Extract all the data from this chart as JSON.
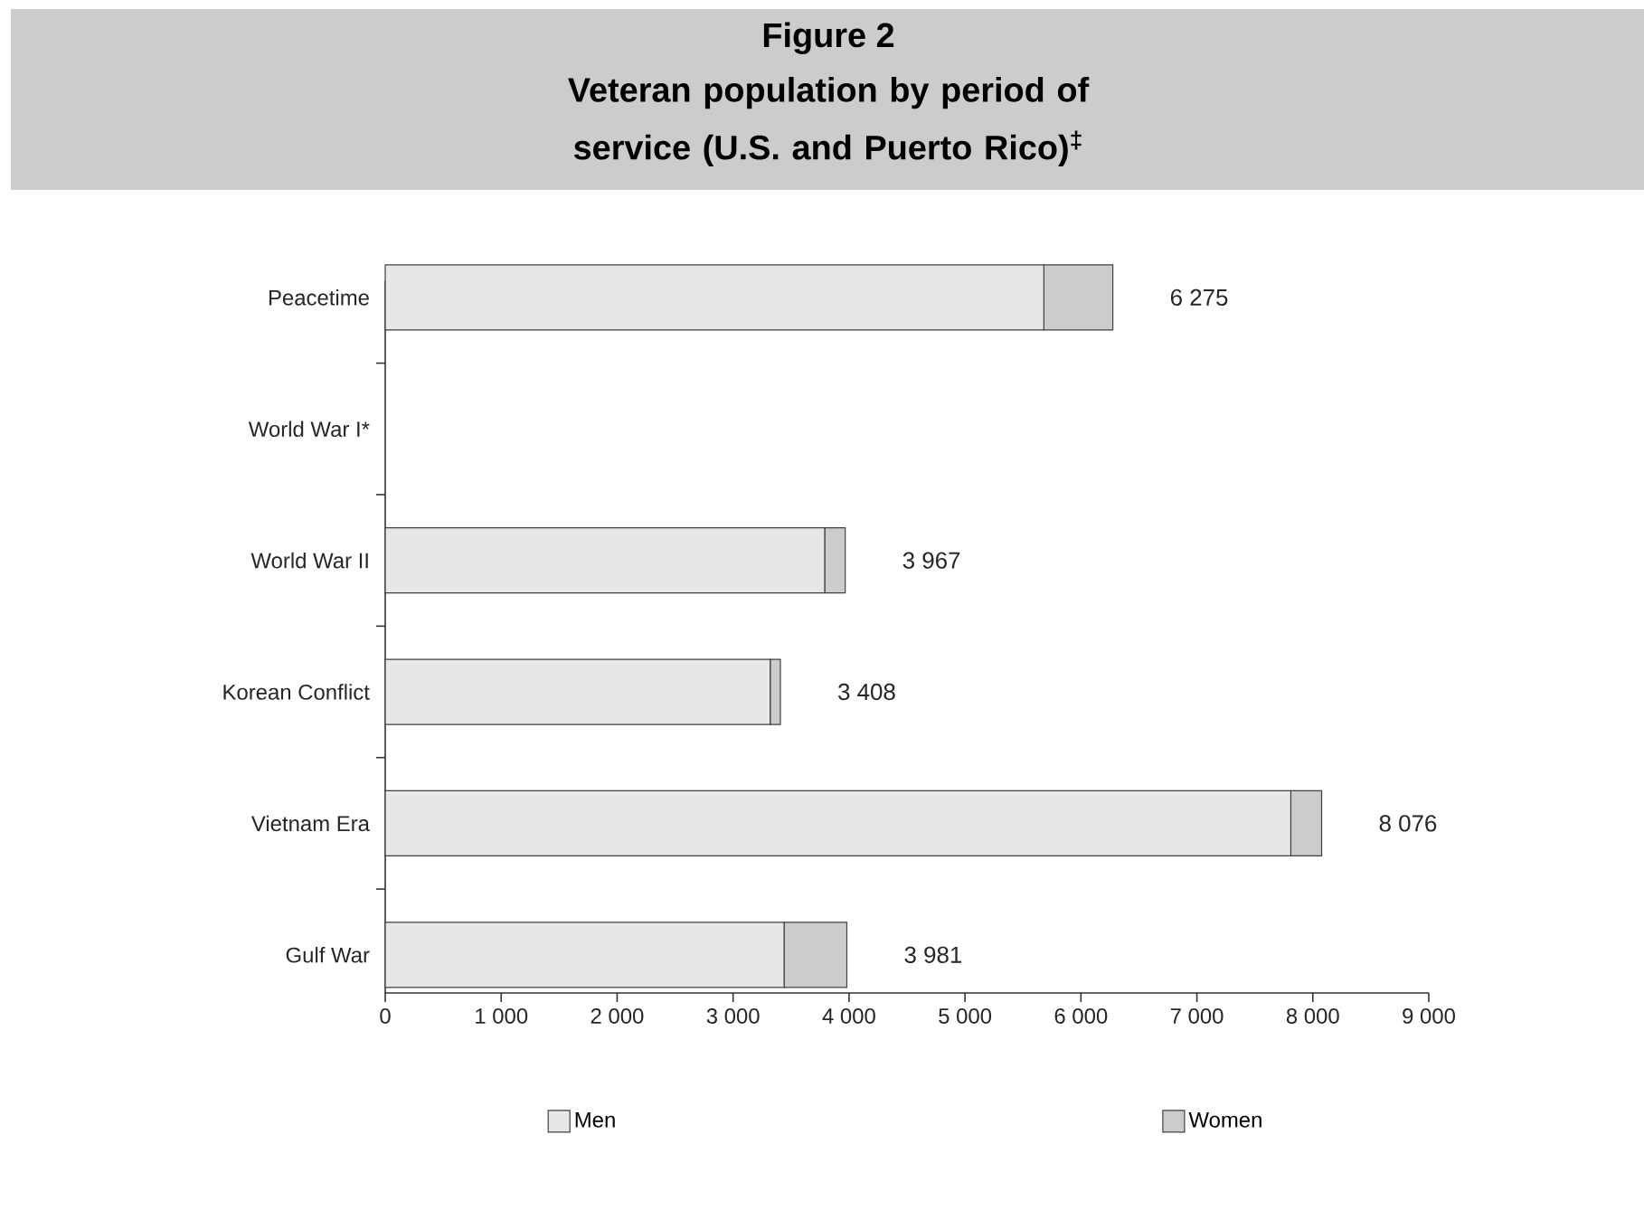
{
  "chart_data": {
    "type": "bar",
    "orientation": "horizontal",
    "stacked": true,
    "title": "Figure 2",
    "subtitle": "Veteran population by period of service (U.S. and Puerto Rico)$^{‡}$",
    "categories": [
      "Peacetime",
      "World War I*",
      "World War II",
      "Korean Conflict",
      "Vietnam Era",
      "Gulf War"
    ],
    "series": [
      {
        "name": "Men",
        "color": "#e6e7e8",
        "values": [
          5680,
          null,
          3790,
          3320,
          7810,
          3440
        ]
      },
      {
        "name": "Women",
        "color": "#cccccc",
        "values": [
          595,
          null,
          177,
          88,
          266,
          541
        ]
      }
    ],
    "totals": [
      "6 275",
      null,
      "3 967",
      "3 408",
      "8 076",
      "3 981"
    ],
    "xlim": [
      0,
      9000
    ],
    "xticks": [
      0,
      {
        "value": 1000,
        "label": "1 000"
      },
      {
        "value": 2000,
        "label": "2 000"
      },
      {
        "value": 3000,
        "label": "3 000"
      },
      {
        "value": 4000,
        "label": "4 000"
      },
      {
        "value": 5000,
        "label": "5 000"
      },
      {
        "value": 6000,
        "label": "6 000"
      },
      {
        "value": 7000,
        "label": "7 000"
      },
      {
        "value": 8000,
        "label": "8 000"
      },
      {
        "value": 9000,
        "label": "9 000"
      }
    ],
    "legend": "bottom"
  }
}
